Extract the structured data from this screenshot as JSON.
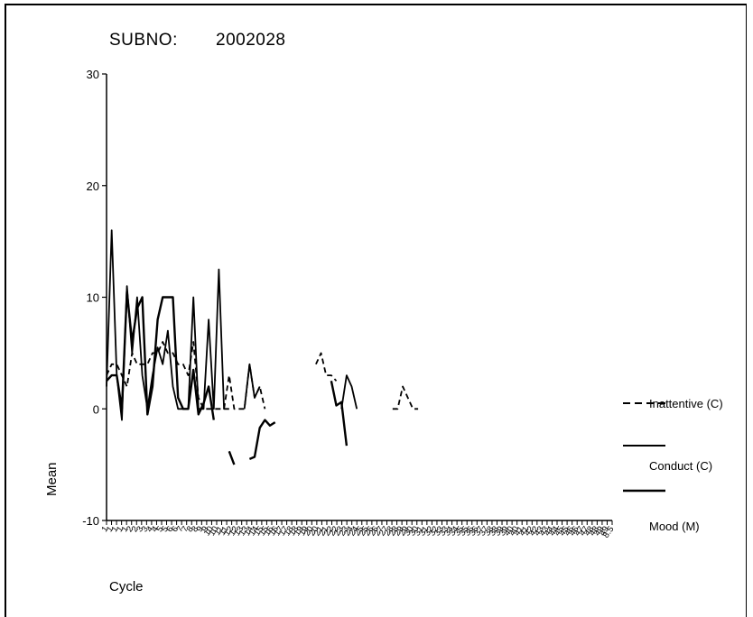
{
  "header": {
    "label": "SUBNO:",
    "value": "2002028"
  },
  "chart_data": {
    "type": "line",
    "xlabel": "Cycle",
    "ylabel": "Mean",
    "ylim": [
      -10,
      30
    ],
    "yticks": [
      -10,
      0,
      10,
      20,
      30
    ],
    "categories": [
      "1.1",
      "1.2",
      "1.3",
      "1.4",
      "2.1",
      "2.2",
      "2.3",
      "2.4",
      "3.1",
      "3.2",
      "3.3",
      "3.4",
      "4.1",
      "4.2",
      "4.3",
      "4.4",
      "5.1",
      "5.2",
      "5.3",
      "5.4",
      "6.1",
      "6.2",
      "6.3",
      "6.4",
      "7.1",
      "7.2",
      "7.3",
      "7.4",
      "8.1",
      "8.2",
      "8.3",
      "8.4",
      "9.1",
      "9.2",
      "9.3",
      "9.4",
      "10.1",
      "10.2",
      "10.3",
      "10.4",
      "11.1",
      "11.2",
      "11.3",
      "11.4",
      "12.1",
      "12.2",
      "12.3",
      "12.4",
      "13.1",
      "13.2",
      "13.3",
      "13.4",
      "14.1",
      "14.2",
      "14.3",
      "14.4",
      "15.1",
      "15.2",
      "15.3",
      "15.4",
      "16.1",
      "16.2",
      "16.3",
      "16.4",
      "17.1",
      "17.2",
      "17.3",
      "17.4",
      "18.1",
      "18.2",
      "18.3",
      "18.4",
      "19.1",
      "19.2",
      "19.3",
      "19.4",
      "20.1",
      "20.2",
      "20.3",
      "20.4",
      "21.1",
      "21.2",
      "21.3",
      "21.4",
      "22.1",
      "22.2",
      "22.3",
      "22.4",
      "23.1",
      "23.2",
      "23.3",
      "23.4",
      "24.1",
      "24.2",
      "24.3",
      "24.4",
      "25.1",
      "25.2",
      "25.3",
      "25.4"
    ],
    "tick_labels": [
      "1.1",
      "1.3",
      "1.5",
      "2.1",
      "2.3",
      "3.1",
      "3.3",
      "4.1",
      "4.3",
      "5.1",
      "5.3",
      "6.1",
      "6.3",
      "7.1",
      "7.3",
      "8.1",
      "8.3",
      "9.1",
      "9.3",
      "10.1",
      "10.3",
      "11.1",
      "11.3",
      "12.1",
      "12.3",
      "13.1",
      "13.3",
      "14.1",
      "14.3",
      "15.1",
      "15.3",
      "16.1",
      "16.3",
      "17.1",
      "17.3",
      "18.1",
      "18.3",
      "19.1",
      "19.3",
      "20.1",
      "20.3",
      "21.1",
      "21.3",
      "22.1",
      "22.3",
      "23.1",
      "23.3",
      "24.1",
      "24.3",
      "25.1",
      "25.3",
      "26.1",
      "26.3",
      "27.1",
      "27.3",
      "28.1",
      "28.3",
      "29.1",
      "29.3",
      "30.1",
      "30.3",
      "31.1",
      "31.3",
      "32.1",
      "32.3",
      "33.1",
      "33.3",
      "34.1",
      "34.3",
      "35.1",
      "35.3",
      "36.1",
      "36.3",
      "37.1",
      "37.3",
      "38.1",
      "38.3",
      "39.1",
      "39.3",
      "40.1",
      "40.3",
      "41.1",
      "41.3",
      "42.1",
      "42.3",
      "43.1",
      "43.3",
      "44.1",
      "44.3",
      "45.1",
      "45.3",
      "46.1",
      "46.3",
      "47.1",
      "47.3",
      "48.1",
      "48.3",
      "49.1",
      "49.3",
      "49.5"
    ],
    "tick_labels_visible": [
      "1",
      "1",
      "1",
      "1",
      "1",
      "2",
      "2",
      "3",
      "3",
      "4",
      "4",
      "5",
      "5",
      "6",
      "6",
      "7",
      "7",
      "8",
      "8",
      "9",
      "9",
      "10",
      "10",
      "11",
      "11",
      "12",
      "12",
      "13",
      "13",
      "14",
      "14",
      "15",
      "15",
      "16",
      "16",
      "17",
      "17",
      "18",
      "18",
      "19",
      "19",
      "20",
      "20",
      "21",
      "21",
      "22",
      "22",
      "23",
      "23",
      "24",
      "24",
      "25",
      "25",
      "26",
      "26",
      "27",
      "27",
      "28",
      "28",
      "29",
      "29",
      "30",
      "30",
      "31",
      "31",
      "32",
      "32",
      "33",
      "33",
      "34",
      "34",
      "35",
      "35",
      "36",
      "36",
      "37",
      "37",
      "38",
      "38",
      "39",
      "39",
      "40",
      "40",
      "41",
      "41",
      "42",
      "42",
      "43",
      "43",
      "44",
      "44",
      "45",
      "45",
      "46",
      "46",
      "47",
      "47",
      "48",
      "48",
      "49",
      "49",
      "8.5"
    ],
    "series": [
      {
        "name": "Inattentive (C)",
        "style": "dashed",
        "values": [
          3,
          4,
          4,
          3,
          2,
          5,
          4,
          4,
          4,
          5,
          5,
          6,
          5,
          5,
          4,
          4,
          3,
          6,
          1,
          0,
          0,
          0,
          0,
          0,
          3,
          0,
          0,
          0,
          4,
          1,
          2,
          0,
          null,
          null,
          null,
          null,
          null,
          null,
          null,
          null,
          null,
          4,
          5,
          3,
          3,
          2.5,
          null,
          null,
          null,
          null,
          null,
          null,
          null,
          null,
          null,
          null,
          0,
          0,
          2,
          1,
          0,
          0,
          null,
          null,
          null,
          null,
          null,
          null,
          null,
          null,
          null,
          null,
          null,
          null,
          null,
          null,
          null,
          null,
          null,
          null,
          null,
          null,
          null,
          null,
          null,
          null,
          null,
          null,
          null,
          null,
          null,
          null,
          null,
          null,
          null,
          null,
          null,
          null,
          null,
          null
        ]
      },
      {
        "name": "Conduct (C)",
        "style": "solid",
        "values": [
          2,
          16,
          3,
          -1,
          11,
          5,
          10,
          3,
          0,
          3,
          5.5,
          4,
          7,
          2,
          0,
          0,
          0,
          10,
          0,
          0,
          8,
          0,
          12.5,
          0,
          0,
          null,
          null,
          0,
          4,
          1,
          2,
          null,
          null,
          null,
          null,
          null,
          null,
          null,
          null,
          null,
          null,
          null,
          null,
          null,
          null,
          null,
          0,
          3,
          2,
          0,
          null,
          null,
          null,
          null,
          null,
          null,
          null,
          null,
          null,
          null,
          null,
          null,
          null,
          null,
          null,
          null,
          null,
          null,
          null,
          null,
          null,
          null,
          null,
          null,
          null,
          null,
          null,
          null,
          null,
          null,
          null,
          null,
          null,
          null,
          null,
          null,
          null,
          null,
          null,
          null,
          null,
          null,
          null,
          null,
          null,
          null,
          null,
          null,
          null,
          null
        ]
      },
      {
        "name": "Mood (M)",
        "style": "solid",
        "values": [
          2.5,
          3,
          3,
          0,
          10.5,
          6,
          9,
          10,
          -0.5,
          2,
          8,
          10,
          10,
          10,
          1,
          0,
          0,
          3.5,
          -0.5,
          0.5,
          2,
          -1,
          null,
          null,
          -3.8,
          -5,
          null,
          null,
          -4.5,
          -4.3,
          -1.7,
          -1,
          -1.5,
          -1.2,
          null,
          null,
          null,
          null,
          null,
          null,
          null,
          null,
          null,
          null,
          2.5,
          0.3,
          0.6,
          -3.3,
          null,
          null,
          null,
          null,
          null,
          null,
          null,
          null,
          null,
          null,
          null,
          null,
          null,
          null,
          null,
          null,
          null,
          null,
          null,
          null,
          null,
          null,
          null,
          null,
          null,
          null,
          null,
          null,
          null,
          null,
          null,
          null,
          null,
          null,
          null,
          null,
          null,
          null,
          null,
          null,
          null,
          null,
          null,
          null,
          null,
          null,
          null,
          null,
          null,
          null,
          null,
          null
        ]
      }
    ],
    "legend": {
      "position": "right",
      "entries": [
        "Inattentive (C)",
        "Conduct (C)",
        "Mood (M)"
      ]
    }
  }
}
